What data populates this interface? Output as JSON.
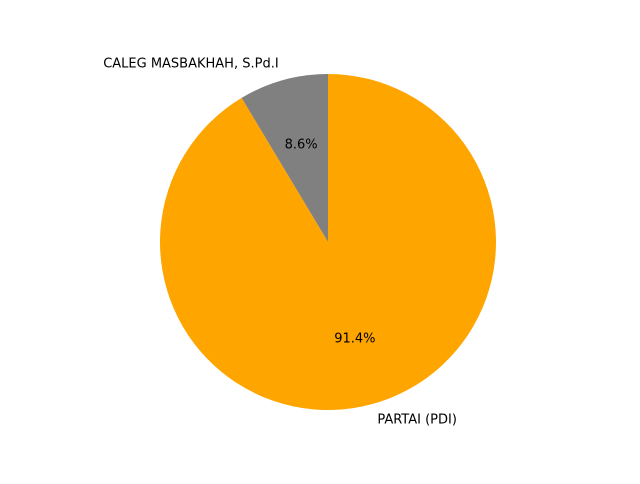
{
  "chart_data": {
    "type": "pie",
    "title": "",
    "slices": [
      {
        "label": "CALEG MASBAKHAH, S.Pd.I",
        "value": 8.6,
        "pct_label": "8.6%",
        "color": "#808080"
      },
      {
        "label": "PARTAI (PDI)",
        "value": 91.4,
        "pct_label": "91.4%",
        "color": "#FFA500"
      }
    ],
    "start_angle_deg": 90,
    "direction": "counterclockwise",
    "legend": "none"
  }
}
